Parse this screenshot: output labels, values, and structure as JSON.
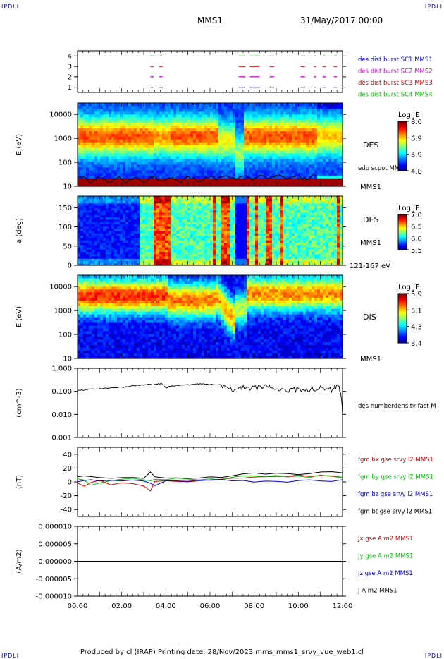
{
  "header": {
    "corner_tl": "IPDLI",
    "corner_tr": "IPDLI",
    "corner_bl": "IPDLI",
    "corner_br": "IPDLI",
    "spacecraft": "MMS1",
    "date": "31/May/2017 00:00"
  },
  "footer": {
    "text": "Produced by cl (IRAP)   Printing date: 28/Nov/2023   mms_mms1_srvy_vue_web1.cl"
  },
  "time_axis": {
    "ticks": [
      "00:00",
      "02:00",
      "04:00",
      "06:00",
      "08:00",
      "10:00",
      "12:00"
    ]
  },
  "colors": {
    "black": "#000000",
    "red": "#d00000",
    "green": "#00c000",
    "blue": "#0000d0",
    "magenta": "#d000d0"
  },
  "chart_data": [
    {
      "type": "scatter",
      "name": "burst-availability",
      "ylim": [
        0.5,
        4.5
      ],
      "yticks": [
        "1",
        "2",
        "3",
        "4"
      ],
      "legend": [
        {
          "label": "des dist burst SC1 MMS1",
          "color": "#0000d0"
        },
        {
          "label": "des dist burst SC2 MMS2",
          "color": "#d000d0"
        },
        {
          "label": "des dist burst SC3 MMS3",
          "color": "#d00000"
        },
        {
          "label": "des dist burst SC4 MMS4",
          "color": "#00c000"
        }
      ],
      "series": [
        {
          "sc": 1,
          "color": "#0000d0",
          "intervals": [
            [
              3.3,
              3.45
            ],
            [
              3.7,
              3.85
            ],
            [
              7.3,
              7.6
            ],
            [
              7.8,
              8.25
            ],
            [
              8.7,
              8.9
            ],
            [
              10.1,
              10.3
            ],
            [
              10.7,
              10.8
            ],
            [
              11.1,
              11.25
            ],
            [
              11.6,
              11.75
            ]
          ]
        },
        {
          "sc": 2,
          "color": "#d000d0",
          "intervals": [
            [
              3.3,
              3.45
            ],
            [
              3.7,
              3.85
            ],
            [
              7.3,
              7.6
            ],
            [
              7.8,
              8.25
            ],
            [
              8.7,
              8.9
            ],
            [
              10.1,
              10.3
            ],
            [
              10.7,
              10.8
            ],
            [
              11.1,
              11.25
            ],
            [
              11.6,
              11.75
            ]
          ]
        },
        {
          "sc": 3,
          "color": "#d00000",
          "intervals": [
            [
              3.3,
              3.45
            ],
            [
              3.7,
              3.85
            ],
            [
              7.3,
              7.6
            ],
            [
              7.8,
              8.25
            ],
            [
              8.7,
              8.9
            ],
            [
              10.1,
              10.3
            ],
            [
              10.7,
              10.8
            ],
            [
              11.1,
              11.25
            ],
            [
              11.6,
              11.75
            ]
          ]
        },
        {
          "sc": 4,
          "color": "#00c000",
          "intervals": [
            [
              3.3,
              3.45
            ],
            [
              3.7,
              3.85
            ],
            [
              7.3,
              7.6
            ],
            [
              7.8,
              8.25
            ],
            [
              8.7,
              8.9
            ],
            [
              10.1,
              10.3
            ],
            [
              10.7,
              10.8
            ],
            [
              11.1,
              11.25
            ],
            [
              11.6,
              11.75
            ]
          ]
        }
      ]
    },
    {
      "type": "heatmap",
      "name": "des-energy-spectrogram",
      "ylabel": "E (eV)",
      "scale": "log",
      "ylim": [
        10,
        30000
      ],
      "yticks": [
        "10",
        "100",
        "1000",
        "10000"
      ],
      "right_label": "DES",
      "right_sub": "MMS1",
      "overlay_label": "edp scpot MMS1",
      "colorbar": {
        "title": "Log JE",
        "ticks": [
          "8.0",
          "6.9",
          "5.9",
          "4.8"
        ],
        "min": 4.8,
        "max": 8.0
      }
    },
    {
      "type": "heatmap",
      "name": "des-pitch-angle",
      "ylabel": "a (deg)",
      "ylim": [
        0,
        180
      ],
      "yticks": [
        "0",
        "50",
        "100",
        "150"
      ],
      "right_label": "DES",
      "right_sub": "MMS1",
      "energy_label": "121-167 eV",
      "colorbar": {
        "title": "Log JE",
        "ticks": [
          "7.0",
          "6.5",
          "6.0",
          "5.5"
        ],
        "min": 5.5,
        "max": 7.0
      }
    },
    {
      "type": "heatmap",
      "name": "dis-energy-spectrogram",
      "ylabel": "E (eV)",
      "scale": "log",
      "ylim": [
        10,
        30000
      ],
      "yticks": [
        "10",
        "100",
        "1000",
        "10000"
      ],
      "right_label": "DIS",
      "right_sub": "MMS1",
      "colorbar": {
        "title": "Log JE",
        "ticks": [
          "5.9",
          "5.1",
          "4.3",
          "3.4"
        ],
        "min": 3.4,
        "max": 5.9
      }
    },
    {
      "type": "line",
      "name": "density",
      "ylabel": "(cm^-3)",
      "scale": "log",
      "ylim": [
        0.001,
        1.0
      ],
      "yticks": [
        "0.001",
        "0.010",
        "0.100",
        "1.000"
      ],
      "legend": [
        {
          "label": "des numberdensity fast M",
          "color": "#000000"
        }
      ],
      "x": [
        0,
        0.5,
        1,
        1.5,
        2,
        2.5,
        3,
        3.5,
        3.8,
        4.0,
        4.2,
        4.5,
        5,
        5.5,
        6,
        6.5,
        7,
        7.5,
        8,
        8.5,
        9,
        9.5,
        10,
        10.5,
        11,
        11.5,
        11.8,
        11.95,
        12
      ],
      "y": [
        0.11,
        0.12,
        0.13,
        0.14,
        0.15,
        0.17,
        0.19,
        0.2,
        0.22,
        0.14,
        0.17,
        0.18,
        0.19,
        0.21,
        0.2,
        0.19,
        0.12,
        0.15,
        0.14,
        0.16,
        0.12,
        0.11,
        0.13,
        0.12,
        0.15,
        0.12,
        0.18,
        0.05,
        0.007
      ]
    },
    {
      "type": "line",
      "name": "magnetic-field",
      "ylabel": "(nT)",
      "ylim": [
        -50,
        50
      ],
      "yticks": [
        "-40",
        "-20",
        "0",
        "20",
        "40"
      ],
      "legend": [
        {
          "label": "fgm bx gse srvy l2 MMS1",
          "color": "#d00000"
        },
        {
          "label": "fgm by gse srvy l2 MMS1",
          "color": "#00c000"
        },
        {
          "label": "fgm bz gse srvy l2 MMS1",
          "color": "#0000d0"
        },
        {
          "label": "fgm bt gse srvy l2 MMS1",
          "color": "#000000"
        }
      ],
      "x": [
        0,
        0.3,
        0.6,
        1.0,
        1.5,
        2.0,
        2.5,
        3.0,
        3.3,
        3.5,
        4.0,
        4.5,
        5.0,
        5.5,
        6.0,
        6.5,
        7.0,
        7.5,
        8.0,
        8.5,
        9.0,
        9.5,
        10.0,
        10.5,
        11.0,
        11.5,
        12.0
      ],
      "series": [
        {
          "name": "bx",
          "color": "#d00000",
          "y": [
            -2,
            -6,
            -1,
            2,
            -4,
            -1,
            -3,
            -6,
            -14,
            1,
            2,
            1,
            0,
            2,
            3,
            4,
            5,
            6,
            7,
            8,
            8,
            7,
            9,
            8,
            9,
            8,
            7
          ]
        },
        {
          "name": "by",
          "color": "#00c000",
          "y": [
            5,
            3,
            -4,
            -2,
            1,
            4,
            5,
            3,
            2,
            4,
            3,
            5,
            4,
            3,
            5,
            4,
            6,
            8,
            9,
            7,
            8,
            6,
            8,
            7,
            9,
            8,
            6
          ]
        },
        {
          "name": "bz",
          "color": "#0000d0",
          "y": [
            1,
            2,
            3,
            2,
            2,
            1,
            2,
            1,
            -2,
            -6,
            1,
            2,
            1,
            2,
            2,
            3,
            1,
            2,
            1,
            0,
            2,
            1,
            1,
            2,
            0,
            1,
            2
          ]
        },
        {
          "name": "bt",
          "color": "#000000",
          "y": [
            7,
            8,
            8,
            6,
            5,
            6,
            7,
            6,
            14,
            8,
            5,
            6,
            5,
            6,
            7,
            7,
            9,
            11,
            12,
            11,
            12,
            11,
            12,
            13,
            13,
            14,
            13
          ]
        }
      ]
    },
    {
      "type": "line",
      "name": "current-density",
      "ylabel": "(A/m2)",
      "ylim": [
        -1e-05,
        1e-05
      ],
      "yticks": [
        "-0.000010",
        "-0.000005",
        "0.000000",
        "0.000005",
        "0.000010"
      ],
      "legend": [
        {
          "label": "Jx gse A m2 MMS1",
          "color": "#d00000"
        },
        {
          "label": "Jy gse A m2 MMS1",
          "color": "#00c000"
        },
        {
          "label": "Jz gse A m2 MMS1",
          "color": "#0000d0"
        },
        {
          "label": "J A m2 MMS1",
          "color": "#000000"
        }
      ],
      "x": [
        0,
        12
      ],
      "y": [
        0,
        0
      ]
    }
  ]
}
